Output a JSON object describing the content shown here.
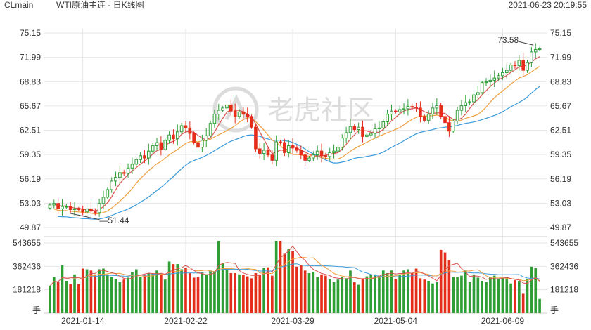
{
  "header": {
    "symbol": "CLmain",
    "title": "WTI原油主连 - 日K线图",
    "datetime": "2021-06-23 20:19:55"
  },
  "watermark": {
    "text": "老虎社区"
  },
  "colors": {
    "up": "#2e9e35",
    "down": "#e52d1b",
    "ma5": "#d9534f",
    "ma10": "#f0a040",
    "ma20": "#3a9ad9",
    "grid": "#e6e6e6",
    "text": "#333333",
    "watermark": "#dcdcdc"
  },
  "chart_data": [
    {
      "type": "candlestick",
      "title": "",
      "x_tick_labels": [
        "2021-01-14",
        "2021-02-22",
        "2021-03-29",
        "2021-05-04",
        "2021-06-09"
      ],
      "y_tick_labels": [
        "75.15",
        "71.99",
        "68.83",
        "65.67",
        "62.51",
        "59.35",
        "56.19",
        "53.03",
        "49.87"
      ],
      "ylim": [
        49.87,
        75.15
      ],
      "annotations": [
        {
          "label": "73.58",
          "value": 73.58,
          "kind": "high"
        },
        {
          "label": "51.44",
          "value": 51.44,
          "kind": "low"
        }
      ],
      "moving_averages": [
        "MA5",
        "MA10",
        "MA20"
      ],
      "grid": true,
      "closes": [
        52.8,
        53.0,
        52.3,
        52.6,
        52.6,
        52.2,
        52.3,
        52.2,
        51.9,
        52.3,
        52.0,
        51.8,
        53.0,
        53.8,
        54.8,
        55.9,
        56.4,
        57.0,
        56.9,
        57.6,
        58.1,
        58.7,
        59.2,
        58.9,
        59.8,
        60.5,
        60.9,
        60.0,
        61.2,
        61.9,
        61.4,
        62.3,
        63.1,
        62.8,
        62.1,
        60.9,
        60.3,
        61.2,
        61.8,
        63.4,
        64.6,
        65.1,
        65.4,
        65.8,
        65.0,
        64.3,
        64.9,
        64.6,
        64.3,
        62.9,
        60.1,
        59.5,
        59.9,
        59.3,
        58.6,
        61.0,
        60.9,
        59.6,
        60.5,
        60.2,
        59.9,
        59.3,
        58.6,
        58.9,
        59.3,
        59.8,
        59.2,
        59.1,
        59.6,
        59.8,
        60.3,
        61.5,
        62.2,
        63.0,
        62.6,
        62.9,
        61.7,
        61.9,
        62.1,
        62.7,
        62.8,
        63.6,
        64.6,
        65.0,
        64.9,
        65.2,
        65.3,
        65.6,
        65.5,
        65.4,
        64.3,
        63.8,
        64.6,
        65.4,
        65.7,
        64.3,
        63.5,
        62.4,
        63.7,
        65.1,
        65.7,
        66.1,
        66.2,
        67.1,
        67.4,
        68.7,
        68.8,
        69.0,
        69.3,
        69.6,
        70.0,
        70.3,
        71.0,
        70.9,
        71.6,
        70.3,
        71.3,
        72.7,
        73.0,
        73.1
      ],
      "volume": {
        "y_tick_labels": [
          "543655",
          "362436",
          "181218",
          "手"
        ],
        "ylim": [
          0,
          560000
        ],
        "values": [
          210000,
          280000,
          240000,
          370000,
          250000,
          225000,
          300000,
          225000,
          345000,
          340000,
          330000,
          300000,
          340000,
          345000,
          300000,
          280000,
          265000,
          240000,
          260000,
          275000,
          320000,
          340000,
          280000,
          300000,
          310000,
          305000,
          330000,
          300000,
          260000,
          400000,
          380000,
          380000,
          340000,
          350000,
          310000,
          275000,
          280000,
          320000,
          300000,
          330000,
          325000,
          580000,
          390000,
          340000,
          310000,
          310000,
          300000,
          295000,
          285000,
          270000,
          310000,
          300000,
          350000,
          355000,
          290000,
          580000,
          580000,
          460000,
          500000,
          480000,
          360000,
          375000,
          330000,
          310000,
          320000,
          280000,
          300000,
          290000,
          265000,
          240000,
          260000,
          280000,
          270000,
          330000,
          240000,
          220000,
          270000,
          285000,
          300000,
          300000,
          280000,
          330000,
          310000,
          330000,
          265000,
          300000,
          330000,
          340000,
          310000,
          345000,
          270000,
          260000,
          250000,
          230000,
          240000,
          490000,
          470000,
          410000,
          280000,
          280000,
          290000,
          330000,
          240000,
          300000,
          275000,
          250000,
          240000,
          280000,
          290000,
          270000,
          270000,
          280000,
          230000,
          255000,
          250000,
          150000,
          265000,
          360000,
          350000,
          110000
        ]
      }
    }
  ]
}
